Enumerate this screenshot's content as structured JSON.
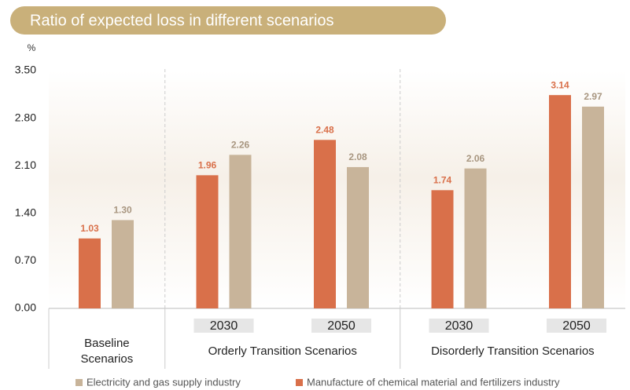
{
  "chart_data": {
    "type": "bar",
    "title": "Ratio of expected loss in different scenarios",
    "y_label": "%",
    "categories": [
      null,
      "2030",
      "2050",
      "2030",
      "2050"
    ],
    "groups": [
      {
        "name": "Baseline Scenarios",
        "count": 1
      },
      {
        "name": "Orderly Transition Scenarios",
        "count": 2
      },
      {
        "name": "Disorderly Transition Scenarios",
        "count": 2
      }
    ],
    "series": [
      {
        "name": "Electricity and gas supply industry",
        "color": "#c8b49a",
        "values": [
          1.3,
          2.26,
          2.08,
          2.06,
          2.97
        ],
        "value_labels": [
          "1.30",
          "2.26",
          "2.08",
          "2.06",
          "2.97"
        ]
      },
      {
        "name": "Manufacture of chemical material and fertilizers industry",
        "color": "#d9704a",
        "values": [
          1.03,
          1.96,
          2.48,
          1.74,
          3.14
        ],
        "value_labels": [
          "1.03",
          "1.96",
          "2.48",
          "1.74",
          "3.14"
        ]
      }
    ],
    "ylim": [
      0,
      3.5
    ],
    "yticks": [
      {
        "value": 0,
        "label": "0.00"
      },
      {
        "value": 0.7,
        "label": "0.70"
      },
      {
        "value": 1.4,
        "label": "1.40"
      },
      {
        "value": 2.1,
        "label": "2.10"
      },
      {
        "value": 2.8,
        "label": "2.80"
      },
      {
        "value": 3.5,
        "label": "3.50"
      }
    ]
  }
}
